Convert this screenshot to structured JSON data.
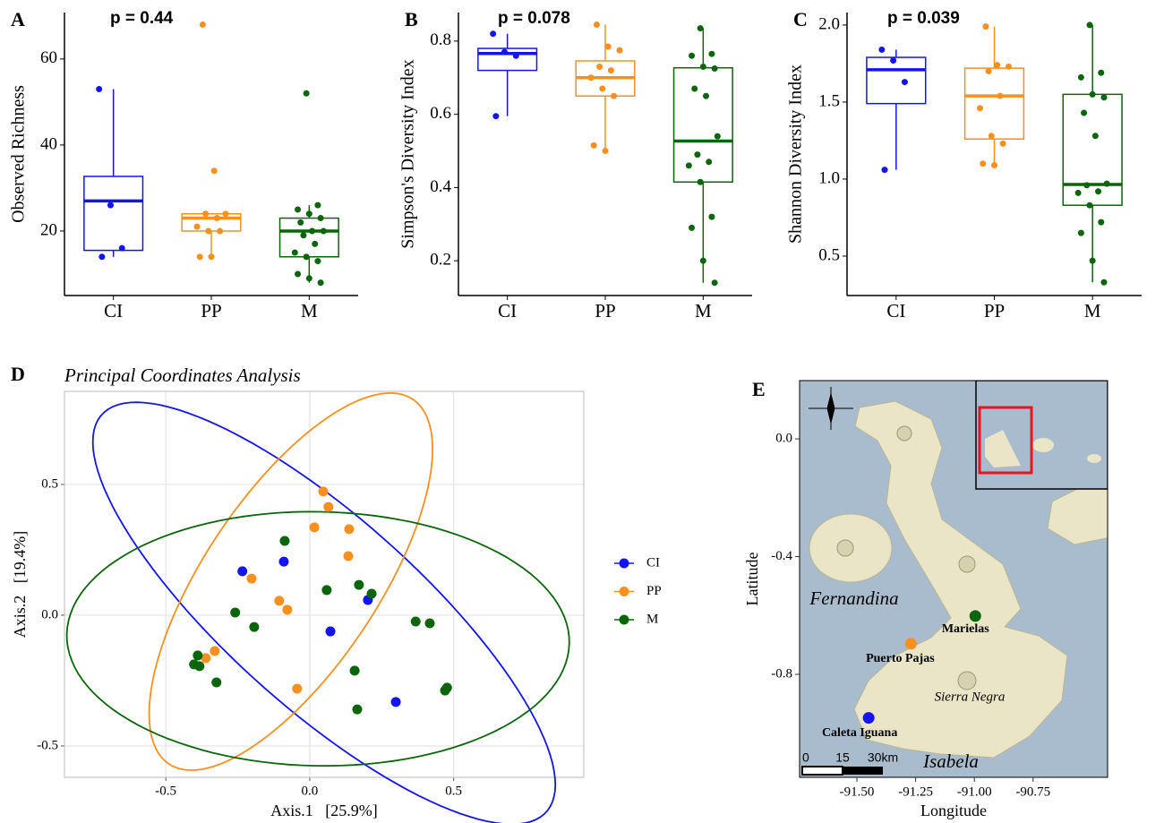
{
  "chart_data": [
    {
      "type": "box",
      "panel": "A",
      "annotation": "p = 0.44",
      "y_label": "Observed Richness",
      "categories": [
        "CI",
        "PP",
        "M"
      ],
      "ylim": [
        5,
        70.8
      ],
      "yticks": [
        20,
        40,
        60
      ],
      "boxes": [
        {
          "color": "#1414f0",
          "whisker_low": 14,
          "q1": 15.5,
          "median": 27,
          "q3": 32.7,
          "whisker_high": 53,
          "points": [
            53,
            26,
            16,
            14
          ]
        },
        {
          "color": "#f7901e",
          "whisker_low": 14,
          "q1": 20,
          "median": 23,
          "q3": 24,
          "whisker_high": 24,
          "points": [
            68,
            34,
            24,
            24,
            23,
            21,
            20,
            20,
            14,
            14
          ]
        },
        {
          "color": "#0b650b",
          "whisker_low": 8,
          "q1": 14,
          "median": 20,
          "q3": 23,
          "whisker_high": 26,
          "points": [
            52,
            26,
            25,
            24,
            23,
            22,
            20,
            20,
            19,
            17,
            15,
            14,
            13,
            10,
            9,
            8
          ]
        }
      ]
    },
    {
      "type": "box",
      "panel": "B",
      "annotation": "p = 0.078",
      "y_label": "Simpson's Diversity Index",
      "categories": [
        "CI",
        "PP",
        "M"
      ],
      "ylim": [
        0.105,
        0.878
      ],
      "yticks": [
        0.2,
        0.4,
        0.6,
        0.8
      ],
      "boxes": [
        {
          "color": "#1414f0",
          "whisker_low": 0.595,
          "q1": 0.72,
          "median": 0.766,
          "q3": 0.78,
          "whisker_high": 0.82,
          "points": [
            0.82,
            0.77,
            0.76,
            0.595
          ]
        },
        {
          "color": "#f7901e",
          "whisker_low": 0.5,
          "q1": 0.65,
          "median": 0.7,
          "q3": 0.746,
          "whisker_high": 0.845,
          "points": [
            0.845,
            0.785,
            0.775,
            0.73,
            0.72,
            0.7,
            0.67,
            0.65,
            0.515,
            0.5
          ]
        },
        {
          "color": "#0b650b",
          "whisker_low": 0.14,
          "q1": 0.415,
          "median": 0.527,
          "q3": 0.727,
          "whisker_high": 0.835,
          "points": [
            0.835,
            0.765,
            0.76,
            0.73,
            0.725,
            0.67,
            0.65,
            0.54,
            0.49,
            0.47,
            0.46,
            0.415,
            0.32,
            0.29,
            0.2,
            0.14
          ]
        }
      ]
    },
    {
      "type": "box",
      "panel": "C",
      "annotation": "p = 0.039",
      "y_label": "Shannon Diversity Index",
      "categories": [
        "CI",
        "PP",
        "M"
      ],
      "ylim": [
        0.244,
        2.081
      ],
      "yticks": [
        0.5,
        {
          "value": 1,
          "label": "1.0"
        },
        1.5,
        {
          "value": 2,
          "label": "2.0"
        }
      ],
      "boxes": [
        {
          "color": "#1414f0",
          "whisker_low": 1.06,
          "q1": 1.49,
          "median": 1.71,
          "q3": 1.79,
          "whisker_high": 1.84,
          "points": [
            1.84,
            1.77,
            1.63,
            1.06
          ]
        },
        {
          "color": "#f7901e",
          "whisker_low": 1.09,
          "q1": 1.26,
          "median": 1.54,
          "q3": 1.72,
          "whisker_high": 1.99,
          "points": [
            1.99,
            1.74,
            1.73,
            1.7,
            1.54,
            1.46,
            1.28,
            1.23,
            1.1,
            1.09
          ]
        },
        {
          "color": "#0b650b",
          "whisker_low": 0.33,
          "q1": 0.83,
          "median": 0.965,
          "q3": 1.55,
          "whisker_high": 2.0,
          "points": [
            2.0,
            1.69,
            1.66,
            1.55,
            1.53,
            1.43,
            1.28,
            0.97,
            0.96,
            0.92,
            0.91,
            0.83,
            0.72,
            0.65,
            0.47,
            0.33
          ]
        }
      ]
    },
    {
      "type": "scatter",
      "panel": "D",
      "title": "Principal Coordinates Analysis",
      "x_label": "Axis.1   [25.9%]",
      "y_label": "Axis.2   [19.4%]",
      "xlim": [
        -0.852,
        0.952
      ],
      "ylim": [
        -0.62,
        0.856
      ],
      "xticks": [
        -0.5,
        {
          "value": 0,
          "label": "0.0"
        },
        0.5
      ],
      "yticks": [
        -0.5,
        {
          "value": 0,
          "label": "0.0"
        },
        0.5
      ],
      "grid": true,
      "legend": "right",
      "series": [
        {
          "name": "CI",
          "color": "#1414f0",
          "x": [
            -0.234,
            -0.09,
            0.202,
            0.072,
            0.299
          ],
          "y": [
            0.168,
            0.205,
            0.058,
            -0.062,
            -0.332
          ]
        },
        {
          "name": "PP",
          "color": "#f7901e",
          "x": [
            0.047,
            0.065,
            0.016,
            0.137,
            0.134,
            -0.202,
            -0.106,
            -0.078,
            -0.33,
            -0.361,
            -0.044
          ],
          "y": [
            0.473,
            0.414,
            0.336,
            0.329,
            0.226,
            0.14,
            0.055,
            0.021,
            -0.137,
            -0.164,
            -0.281
          ]
        },
        {
          "name": "M",
          "color": "#0b650b",
          "x": [
            -0.087,
            0.171,
            0.059,
            0.215,
            -0.259,
            -0.193,
            0.368,
            0.417,
            -0.389,
            -0.402,
            -0.383,
            -0.324,
            0.156,
            0.165,
            0.477,
            0.47
          ],
          "y": [
            0.284,
            0.116,
            0.096,
            0.082,
            0.01,
            -0.045,
            -0.024,
            -0.031,
            -0.154,
            -0.188,
            -0.195,
            -0.257,
            -0.212,
            -0.36,
            -0.277,
            -0.288
          ]
        }
      ]
    },
    {
      "type": "map",
      "panel": "E",
      "x_label": "Longitude",
      "y_label": "Latitude",
      "xlim": [
        -91.744,
        -90.433
      ],
      "ylim": [
        -1.15,
        0.198
      ],
      "xticks": [
        {
          "value": -91.5,
          "label": "-91.50"
        },
        -91.25,
        {
          "value": -91,
          "label": "-91.00"
        },
        -90.75
      ],
      "yticks": [
        {
          "value": 0,
          "label": "0.0"
        },
        -0.4,
        -0.8
      ],
      "sites": [
        {
          "name": "Marielas",
          "color": "#0b650b",
          "x": -90.996,
          "y": -0.602
        },
        {
          "name": "Puerto Pajas",
          "color": "#f7901e",
          "x": -91.27,
          "y": -0.696
        },
        {
          "name": "Caleta Iguana",
          "color": "#1414f0",
          "x": -91.45,
          "y": -0.948
        }
      ],
      "island_labels": [
        "Fernandina",
        "Sierra Negra",
        "Isabela"
      ],
      "scale_labels": [
        "0",
        "15",
        "30km"
      ]
    }
  ]
}
